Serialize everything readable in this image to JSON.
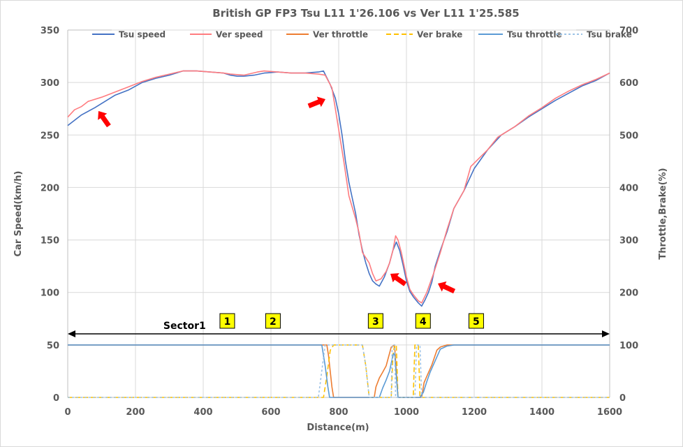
{
  "chart_data": {
    "type": "line",
    "title": "British GP FP3 Tsu L11 1'26.106 vs Ver L11 1'25.585",
    "xlabel": "Distance(m)",
    "ylabel": "Car Speed(km/h)",
    "y2label": "Throttle,Brake(%)",
    "xlim": [
      0,
      1600
    ],
    "ylim": [
      0,
      350
    ],
    "y2lim": [
      0,
      700
    ],
    "x_ticks": [
      "0",
      "200",
      "400",
      "600",
      "800",
      "1000",
      "1200",
      "1400",
      "1600"
    ],
    "y_ticks": [
      "0",
      "50",
      "100",
      "150",
      "200",
      "250",
      "300",
      "350"
    ],
    "y2_ticks": [
      "0",
      "100",
      "200",
      "300",
      "400",
      "500",
      "600",
      "700"
    ],
    "grid": true,
    "legend_position": "top",
    "series": [
      {
        "name": "Tsu speed",
        "axis": "left",
        "color": "#4472c4",
        "dash": "",
        "points": [
          [
            0,
            259
          ],
          [
            20,
            264
          ],
          [
            40,
            269
          ],
          [
            80,
            276
          ],
          [
            100,
            280
          ],
          [
            140,
            288
          ],
          [
            180,
            293
          ],
          [
            220,
            300
          ],
          [
            260,
            304
          ],
          [
            300,
            307
          ],
          [
            340,
            311
          ],
          [
            380,
            311
          ],
          [
            420,
            310
          ],
          [
            460,
            309
          ],
          [
            480,
            307
          ],
          [
            500,
            306
          ],
          [
            520,
            306
          ],
          [
            550,
            307
          ],
          [
            580,
            309
          ],
          [
            620,
            310
          ],
          [
            660,
            309
          ],
          [
            700,
            309
          ],
          [
            740,
            310
          ],
          [
            755,
            311
          ],
          [
            775,
            298
          ],
          [
            790,
            285
          ],
          [
            800,
            270
          ],
          [
            810,
            250
          ],
          [
            820,
            225
          ],
          [
            830,
            205
          ],
          [
            840,
            190
          ],
          [
            850,
            175
          ],
          [
            860,
            155
          ],
          [
            870,
            140
          ],
          [
            880,
            128
          ],
          [
            890,
            118
          ],
          [
            900,
            111
          ],
          [
            910,
            108
          ],
          [
            920,
            106
          ],
          [
            935,
            115
          ],
          [
            950,
            128
          ],
          [
            960,
            140
          ],
          [
            970,
            148
          ],
          [
            980,
            140
          ],
          [
            990,
            126
          ],
          [
            1000,
            111
          ],
          [
            1010,
            101
          ],
          [
            1020,
            96
          ],
          [
            1035,
            90
          ],
          [
            1045,
            87
          ],
          [
            1055,
            93
          ],
          [
            1065,
            100
          ],
          [
            1075,
            110
          ],
          [
            1085,
            125
          ],
          [
            1100,
            140
          ],
          [
            1120,
            158
          ],
          [
            1140,
            180
          ],
          [
            1170,
            197
          ],
          [
            1200,
            218
          ],
          [
            1240,
            236
          ],
          [
            1280,
            250
          ],
          [
            1320,
            258
          ],
          [
            1360,
            267
          ],
          [
            1400,
            275
          ],
          [
            1440,
            283
          ],
          [
            1480,
            290
          ],
          [
            1520,
            297
          ],
          [
            1560,
            302
          ],
          [
            1600,
            309
          ]
        ]
      },
      {
        "name": "Ver speed",
        "axis": "left",
        "color": "#ff7c80",
        "dash": "",
        "points": [
          [
            0,
            267
          ],
          [
            20,
            274
          ],
          [
            40,
            277
          ],
          [
            60,
            282
          ],
          [
            100,
            286
          ],
          [
            140,
            291
          ],
          [
            180,
            296
          ],
          [
            220,
            301
          ],
          [
            260,
            305
          ],
          [
            300,
            308
          ],
          [
            340,
            311
          ],
          [
            380,
            311
          ],
          [
            420,
            310
          ],
          [
            460,
            309
          ],
          [
            480,
            308
          ],
          [
            520,
            307
          ],
          [
            560,
            310
          ],
          [
            580,
            311
          ],
          [
            620,
            310
          ],
          [
            660,
            309
          ],
          [
            700,
            309
          ],
          [
            740,
            308
          ],
          [
            760,
            307
          ],
          [
            780,
            295
          ],
          [
            790,
            275
          ],
          [
            800,
            255
          ],
          [
            815,
            225
          ],
          [
            830,
            192
          ],
          [
            850,
            170
          ],
          [
            860,
            157
          ],
          [
            870,
            138
          ],
          [
            890,
            128
          ],
          [
            900,
            118
          ],
          [
            910,
            111
          ],
          [
            925,
            113
          ],
          [
            940,
            120
          ],
          [
            950,
            128
          ],
          [
            960,
            140
          ],
          [
            968,
            154
          ],
          [
            975,
            150
          ],
          [
            985,
            138
          ],
          [
            1000,
            115
          ],
          [
            1010,
            103
          ],
          [
            1020,
            98
          ],
          [
            1035,
            92
          ],
          [
            1045,
            90
          ],
          [
            1060,
            100
          ],
          [
            1080,
            118
          ],
          [
            1100,
            138
          ],
          [
            1120,
            160
          ],
          [
            1140,
            180
          ],
          [
            1170,
            197
          ],
          [
            1190,
            220
          ],
          [
            1240,
            236
          ],
          [
            1270,
            248
          ],
          [
            1320,
            258
          ],
          [
            1360,
            268
          ],
          [
            1400,
            276
          ],
          [
            1440,
            285
          ],
          [
            1480,
            292
          ],
          [
            1520,
            298
          ],
          [
            1560,
            303
          ],
          [
            1600,
            309
          ]
        ]
      },
      {
        "name": "Ver throttle",
        "axis": "right",
        "color": "#ed7d31",
        "dash": "",
        "points": [
          [
            0,
            100
          ],
          [
            765,
            100
          ],
          [
            770,
            80
          ],
          [
            780,
            20
          ],
          [
            785,
            0
          ],
          [
            905,
            0
          ],
          [
            910,
            20
          ],
          [
            920,
            37
          ],
          [
            930,
            48
          ],
          [
            940,
            60
          ],
          [
            955,
            96
          ],
          [
            965,
            100
          ],
          [
            975,
            0
          ],
          [
            1045,
            0
          ],
          [
            1052,
            28
          ],
          [
            1060,
            40
          ],
          [
            1075,
            62
          ],
          [
            1090,
            90
          ],
          [
            1100,
            96
          ],
          [
            1120,
            100
          ],
          [
            1600,
            100
          ]
        ]
      },
      {
        "name": "Ver brake",
        "axis": "right",
        "color": "#ffc000",
        "dash": "7 4",
        "points": [
          [
            0,
            0
          ],
          [
            755,
            0
          ],
          [
            765,
            40
          ],
          [
            775,
            90
          ],
          [
            785,
            100
          ],
          [
            870,
            100
          ],
          [
            880,
            60
          ],
          [
            890,
            0
          ],
          [
            955,
            0
          ],
          [
            960,
            80
          ],
          [
            965,
            100
          ],
          [
            970,
            100
          ],
          [
            975,
            0
          ],
          [
            1020,
            0
          ],
          [
            1025,
            100
          ],
          [
            1035,
            100
          ],
          [
            1040,
            0
          ],
          [
            1600,
            0
          ]
        ]
      },
      {
        "name": "Tsu throttle",
        "axis": "right",
        "color": "#5b9bd5",
        "dash": "",
        "points": [
          [
            0,
            100
          ],
          [
            750,
            100
          ],
          [
            760,
            60
          ],
          [
            768,
            20
          ],
          [
            773,
            0
          ],
          [
            920,
            0
          ],
          [
            930,
            18
          ],
          [
            940,
            33
          ],
          [
            950,
            50
          ],
          [
            960,
            80
          ],
          [
            965,
            85
          ],
          [
            970,
            40
          ],
          [
            975,
            0
          ],
          [
            1040,
            0
          ],
          [
            1050,
            10
          ],
          [
            1060,
            30
          ],
          [
            1070,
            48
          ],
          [
            1085,
            70
          ],
          [
            1100,
            92
          ],
          [
            1120,
            98
          ],
          [
            1140,
            100
          ],
          [
            1600,
            100
          ]
        ]
      },
      {
        "name": "Tsu brake",
        "axis": "right",
        "color": "#9dc3e6",
        "dash": "3 3",
        "points": [
          [
            0,
            0
          ],
          [
            740,
            0
          ],
          [
            752,
            60
          ],
          [
            760,
            100
          ],
          [
            870,
            100
          ],
          [
            880,
            60
          ],
          [
            890,
            0
          ],
          [
            955,
            0
          ],
          [
            958,
            100
          ],
          [
            965,
            100
          ],
          [
            968,
            0
          ],
          [
            1025,
            0
          ],
          [
            1030,
            100
          ],
          [
            1040,
            100
          ],
          [
            1045,
            0
          ],
          [
            1600,
            0
          ]
        ]
      }
    ],
    "annotations": {
      "sector_label": "Sector1",
      "markers": [
        {
          "label": "1",
          "x": 470
        },
        {
          "label": "2",
          "x": 605
        },
        {
          "label": "3",
          "x": 908
        },
        {
          "label": "4",
          "x": 1048
        },
        {
          "label": "5",
          "x": 1205
        }
      ],
      "arrow_color": "#ff0000",
      "marker_fill": "#ffff00"
    }
  }
}
